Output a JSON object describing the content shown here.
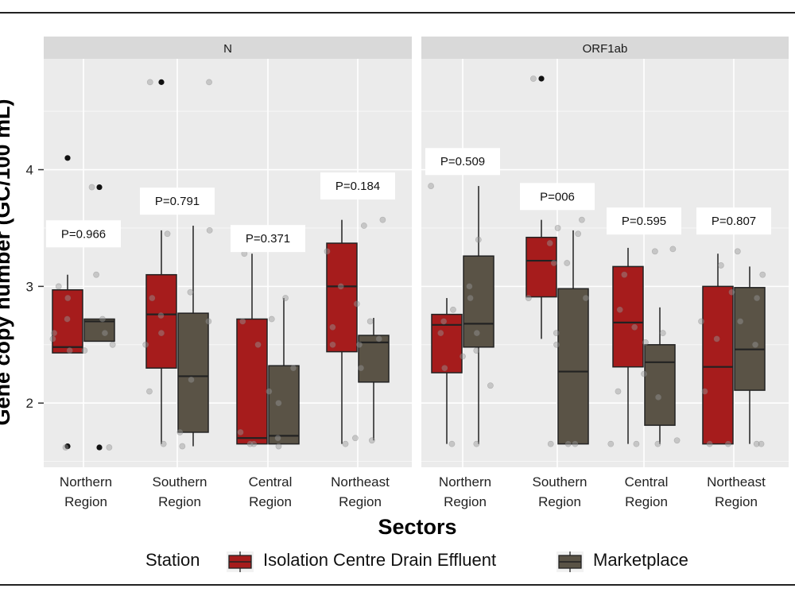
{
  "chart_data": {
    "type": "box",
    "title": "",
    "xlabel": "Sectors",
    "ylabel": "Gene copy number (GC/100 mL)",
    "ylim": [
      1.45,
      4.95
    ],
    "y_ticks": [
      2,
      3,
      4
    ],
    "grid": true,
    "legend": {
      "title": "Station",
      "placement": "bottom",
      "entries": [
        {
          "name": "Isolation Centre Drain Effluent",
          "color": "#a61c1c"
        },
        {
          "name": "Marketplace",
          "color": "#5a5346"
        }
      ]
    },
    "categories": [
      [
        "Northern",
        "Region"
      ],
      [
        "Southern",
        "Region"
      ],
      [
        "Central",
        "Region"
      ],
      [
        "Northeast",
        "Region"
      ]
    ],
    "colors": {
      "panel_bg": "#ebebeb",
      "strip_bg": "#d9d9d9",
      "grid": "#ffffff",
      "isolation": "#a61c1c",
      "marketplace": "#5a5346"
    },
    "panels": [
      {
        "name": "N",
        "pvalues": [
          "P=0.966",
          "P=0.791",
          "P=0.371",
          "P=0.184"
        ],
        "pvalue_y": [
          3.45,
          3.73,
          3.41,
          3.86
        ],
        "boxes": [
          [
            {
              "min": 2.43,
              "q1": 2.43,
              "median": 2.48,
              "q3": 2.97,
              "max": 3.1,
              "outliers": [
                4.1,
                1.63
              ]
            },
            {
              "min": 2.53,
              "q1": 2.53,
              "median": 2.7,
              "q3": 2.72,
              "max": 2.72,
              "outliers": [
                3.85,
                1.62
              ]
            }
          ],
          [
            {
              "min": 1.65,
              "q1": 2.3,
              "median": 2.76,
              "q3": 3.1,
              "max": 3.48,
              "outliers": [
                4.75
              ]
            },
            {
              "min": 1.63,
              "q1": 1.75,
              "median": 2.23,
              "q3": 2.77,
              "max": 3.52,
              "outliers": []
            }
          ],
          [
            {
              "min": 1.65,
              "q1": 1.65,
              "median": 1.7,
              "q3": 2.72,
              "max": 3.28,
              "outliers": []
            },
            {
              "min": 1.65,
              "q1": 1.65,
              "median": 1.72,
              "q3": 2.32,
              "max": 2.9,
              "outliers": []
            }
          ],
          [
            {
              "min": 1.65,
              "q1": 2.44,
              "median": 3.0,
              "q3": 3.37,
              "max": 3.57,
              "outliers": []
            },
            {
              "min": 1.68,
              "q1": 2.18,
              "median": 2.52,
              "q3": 2.58,
              "max": 2.73,
              "outliers": []
            }
          ]
        ],
        "jitter": [
          [
            [
              2.72,
              2.45,
              2.6,
              3.0,
              1.62,
              2.9,
              2.55
            ],
            [
              2.5,
              2.72,
              3.1,
              3.85,
              1.62,
              2.6,
              2.45
            ]
          ],
          [
            [
              2.6,
              2.9,
              3.45,
              2.1,
              1.65,
              2.75,
              4.75,
              2.5
            ],
            [
              2.7,
              3.48,
              1.75,
              2.2,
              4.75,
              1.63,
              2.95
            ]
          ],
          [
            [
              1.65,
              2.5,
              3.28,
              1.75,
              2.1,
              1.65,
              2.7
            ],
            [
              2.9,
              1.7,
              2.72,
              2.3,
              1.63,
              2.0
            ]
          ],
          [
            [
              3.3,
              2.85,
              2.5,
              1.7,
              3.0,
              2.65,
              1.65
            ],
            [
              2.7,
              3.57,
              2.55,
              2.3,
              3.52,
              1.68,
              2.5
            ]
          ]
        ]
      },
      {
        "name": "ORF1ab",
        "pvalues": [
          "P=0.509",
          "P=006",
          "P=0.595",
          "P=0.807"
        ],
        "pvalue_y": [
          4.07,
          3.77,
          3.56,
          3.56
        ],
        "boxes": [
          [
            {
              "min": 1.65,
              "q1": 2.26,
              "median": 2.67,
              "q3": 2.76,
              "max": 2.9,
              "outliers": []
            },
            {
              "min": 1.65,
              "q1": 2.48,
              "median": 2.68,
              "q3": 3.26,
              "max": 3.86,
              "outliers": []
            }
          ],
          [
            {
              "min": 2.55,
              "q1": 2.91,
              "median": 3.22,
              "q3": 3.42,
              "max": 3.57,
              "outliers": [
                4.78
              ]
            },
            {
              "min": 1.65,
              "q1": 1.65,
              "median": 2.27,
              "q3": 2.98,
              "max": 3.48,
              "outliers": []
            }
          ],
          [
            {
              "min": 1.65,
              "q1": 2.31,
              "median": 2.69,
              "q3": 3.17,
              "max": 3.33,
              "outliers": []
            },
            {
              "min": 1.65,
              "q1": 1.81,
              "median": 2.35,
              "q3": 2.5,
              "max": 2.82,
              "outliers": []
            }
          ],
          [
            {
              "min": 1.65,
              "q1": 1.65,
              "median": 2.31,
              "q3": 3.0,
              "max": 3.28,
              "outliers": []
            },
            {
              "min": 1.65,
              "q1": 2.11,
              "median": 2.46,
              "q3": 2.99,
              "max": 3.17,
              "outliers": []
            }
          ]
        ],
        "jitter": [
          [
            [
              3.86,
              2.7,
              2.8,
              1.65,
              2.4,
              2.6,
              2.3
            ],
            [
              3.4,
              2.45,
              2.15,
              2.6,
              1.65,
              2.9,
              3.0
            ]
          ],
          [
            [
              3.37,
              2.9,
              4.78,
              1.65,
              3.2,
              3.5,
              2.6
            ],
            [
              2.9,
              3.57,
              3.45,
              1.65,
              2.5,
              3.2,
              1.65
            ]
          ],
          [
            [
              2.1,
              3.1,
              2.65,
              1.65,
              2.8,
              2.25,
              1.65
            ],
            [
              3.3,
              2.6,
              1.65,
              2.52,
              1.68,
              2.05,
              3.32
            ]
          ],
          [
            [
              3.18,
              2.55,
              2.1,
              1.65,
              2.95,
              1.65,
              2.7
            ],
            [
              3.3,
              2.9,
              1.65,
              2.5,
              3.1,
              2.7,
              1.65
            ]
          ]
        ]
      }
    ]
  }
}
